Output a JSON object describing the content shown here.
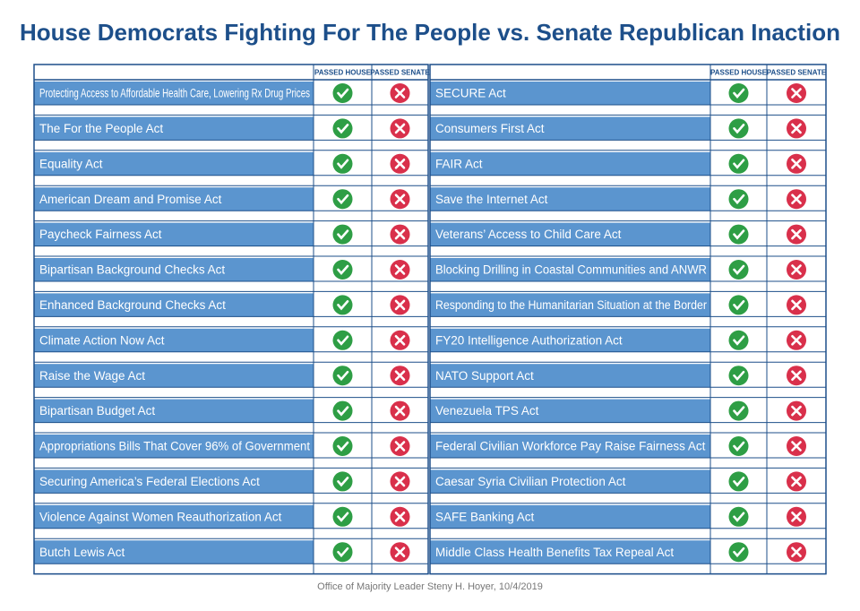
{
  "header": {
    "title": "House Democrats Fighting For The People vs. Senate Republican Inaction"
  },
  "table": {
    "columns": [
      "PASSED HOUSE",
      "PASSED SENATE"
    ],
    "left": [
      "Protecting Access to Affordable Health Care, Lowering Rx Drug Prices",
      "The For the People Act",
      "Equality Act",
      "American Dream and Promise Act",
      "Paycheck Fairness Act",
      "Bipartisan Background Checks Act",
      "Enhanced Background Checks Act",
      "Climate Action Now Act",
      "Raise the Wage Act",
      "Bipartisan Budget Act",
      "Appropriations Bills That Cover 96% of Government",
      "Securing America’s Federal Elections Act",
      "Violence Against Women Reauthorization Act",
      "Butch Lewis Act"
    ],
    "right": [
      "SECURE Act",
      "Consumers First Act",
      "FAIR Act",
      "Save the Internet Act",
      "Veterans’ Access to Child Care Act",
      "Blocking Drilling in Coastal Communities and ANWR",
      "Responding to the Humanitarian Situation at the Border",
      "FY20 Intelligence Authorization Act",
      "NATO Support Act",
      "Venezuela TPS Act",
      "Federal Civilian Workforce Pay Raise Fairness Act",
      "Caesar Syria Civilian Protection Act",
      "SAFE Banking Act",
      "Middle Class Health Benefits Tax Repeal Act"
    ]
  },
  "footer": {
    "source": "Office of Majority Leader Steny H. Hoyer, 10/4/2019"
  }
}
